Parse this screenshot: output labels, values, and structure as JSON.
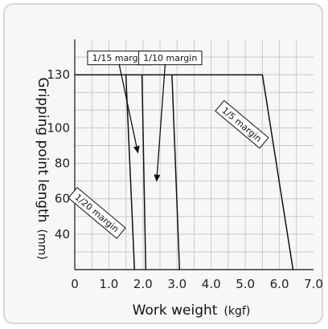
{
  "chart_data": {
    "type": "line",
    "xlabel": "Work weight",
    "xlabel_unit": "(kgf)",
    "ylabel": "Gripping point length",
    "ylabel_unit": "(mm)",
    "xlim": [
      0,
      7.0
    ],
    "ylim": [
      20,
      150
    ],
    "grid": true,
    "x_ticks": [
      {
        "v": 0,
        "label": "0"
      },
      {
        "v": 1.0,
        "label": "1.0"
      },
      {
        "v": 2.0,
        "label": "2.0"
      },
      {
        "v": 3.0,
        "label": "3.0"
      },
      {
        "v": 4.0,
        "label": "4.0"
      },
      {
        "v": 5.0,
        "label": "5.0"
      },
      {
        "v": 6.0,
        "label": "6.0"
      },
      {
        "v": 7.0,
        "label": "7.0"
      }
    ],
    "y_ticks": [
      {
        "v": 40,
        "label": "40"
      },
      {
        "v": 60,
        "label": "60"
      },
      {
        "v": 80,
        "label": "80"
      },
      {
        "v": 100,
        "label": "100"
      },
      {
        "v": 130,
        "label": "130"
      }
    ],
    "series": [
      {
        "name": "1/20 margin",
        "points": [
          [
            0,
            130
          ],
          [
            1.5,
            130
          ],
          [
            1.75,
            20
          ]
        ]
      },
      {
        "name": "1/15 margin",
        "points": [
          [
            0,
            130
          ],
          [
            1.97,
            130
          ],
          [
            2.08,
            20
          ]
        ]
      },
      {
        "name": "1/10 margin",
        "points": [
          [
            0,
            130
          ],
          [
            2.85,
            130
          ],
          [
            3.07,
            20
          ]
        ]
      },
      {
        "name": "1/5 margin",
        "points": [
          [
            0,
            130
          ],
          [
            5.5,
            130
          ],
          [
            6.4,
            20
          ]
        ]
      }
    ],
    "annotations": [
      {
        "text": "1/15 margin",
        "rotate": 0,
        "label_at": [
          1.3,
          139.5
        ],
        "arrow_from": [
          1.3,
          136
        ],
        "arrow_to": [
          1.85,
          86
        ]
      },
      {
        "text": "1/10 margin",
        "rotate": 0,
        "label_at": [
          2.8,
          139.5
        ],
        "arrow_from": [
          2.65,
          136
        ],
        "arrow_to": [
          2.4,
          70
        ]
      },
      {
        "text": "1/5 margin",
        "rotate": 40,
        "label_at": [
          4.9,
          102
        ],
        "arrow_from": null,
        "arrow_to": null
      },
      {
        "text": "1/20 margin",
        "rotate": 40,
        "label_at": [
          0.65,
          52
        ],
        "arrow_from": null,
        "arrow_to": null
      }
    ]
  }
}
